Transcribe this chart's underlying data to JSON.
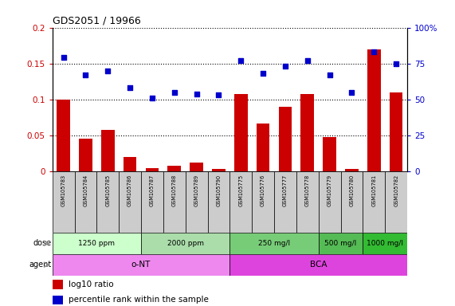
{
  "title": "GDS2051 / 19966",
  "samples": [
    "GSM105783",
    "GSM105784",
    "GSM105785",
    "GSM105786",
    "GSM105787",
    "GSM105788",
    "GSM105789",
    "GSM105790",
    "GSM105775",
    "GSM105776",
    "GSM105777",
    "GSM105778",
    "GSM105779",
    "GSM105780",
    "GSM105781",
    "GSM105782"
  ],
  "log10_ratio": [
    0.1,
    0.045,
    0.058,
    0.02,
    0.004,
    0.008,
    0.012,
    0.003,
    0.107,
    0.067,
    0.09,
    0.107,
    0.048,
    0.003,
    0.17,
    0.11
  ],
  "percentile_rank": [
    79,
    67,
    70,
    58,
    51,
    55,
    54,
    53,
    77,
    68,
    73,
    77,
    67,
    55,
    83,
    75
  ],
  "bar_color": "#cc0000",
  "dot_color": "#0000cc",
  "ylim_left": [
    0,
    0.2
  ],
  "ylim_right": [
    0,
    100
  ],
  "yticks_left": [
    0,
    0.05,
    0.1,
    0.15,
    0.2
  ],
  "yticks_right": [
    0,
    25,
    50,
    75,
    100
  ],
  "ytick_labels_left": [
    "0",
    "0.05",
    "0.1",
    "0.15",
    "0.2"
  ],
  "ytick_labels_right": [
    "0",
    "25",
    "50",
    "75",
    "100%"
  ],
  "dose_groups": [
    {
      "label": "1250 ppm",
      "start": 0,
      "end": 4
    },
    {
      "label": "2000 ppm",
      "start": 4,
      "end": 8
    },
    {
      "label": "250 mg/l",
      "start": 8,
      "end": 12
    },
    {
      "label": "500 mg/l",
      "start": 12,
      "end": 14
    },
    {
      "label": "1000 mg/l",
      "start": 14,
      "end": 16
    }
  ],
  "dose_colors": [
    "#ccffcc",
    "#aaddaa",
    "#77cc77",
    "#55bb55",
    "#33bb33"
  ],
  "agent_groups": [
    {
      "label": "o-NT",
      "start": 0,
      "end": 8
    },
    {
      "label": "BCA",
      "start": 8,
      "end": 16
    }
  ],
  "agent_colors": [
    "#ee88ee",
    "#dd44dd"
  ],
  "grid_color": "#000000",
  "background_color": "#ffffff",
  "tick_label_color_left": "#cc0000",
  "tick_label_color_right": "#0000cc",
  "sample_bg_color": "#cccccc",
  "legend_bar_color": "#cc0000",
  "legend_dot_color": "#0000cc"
}
